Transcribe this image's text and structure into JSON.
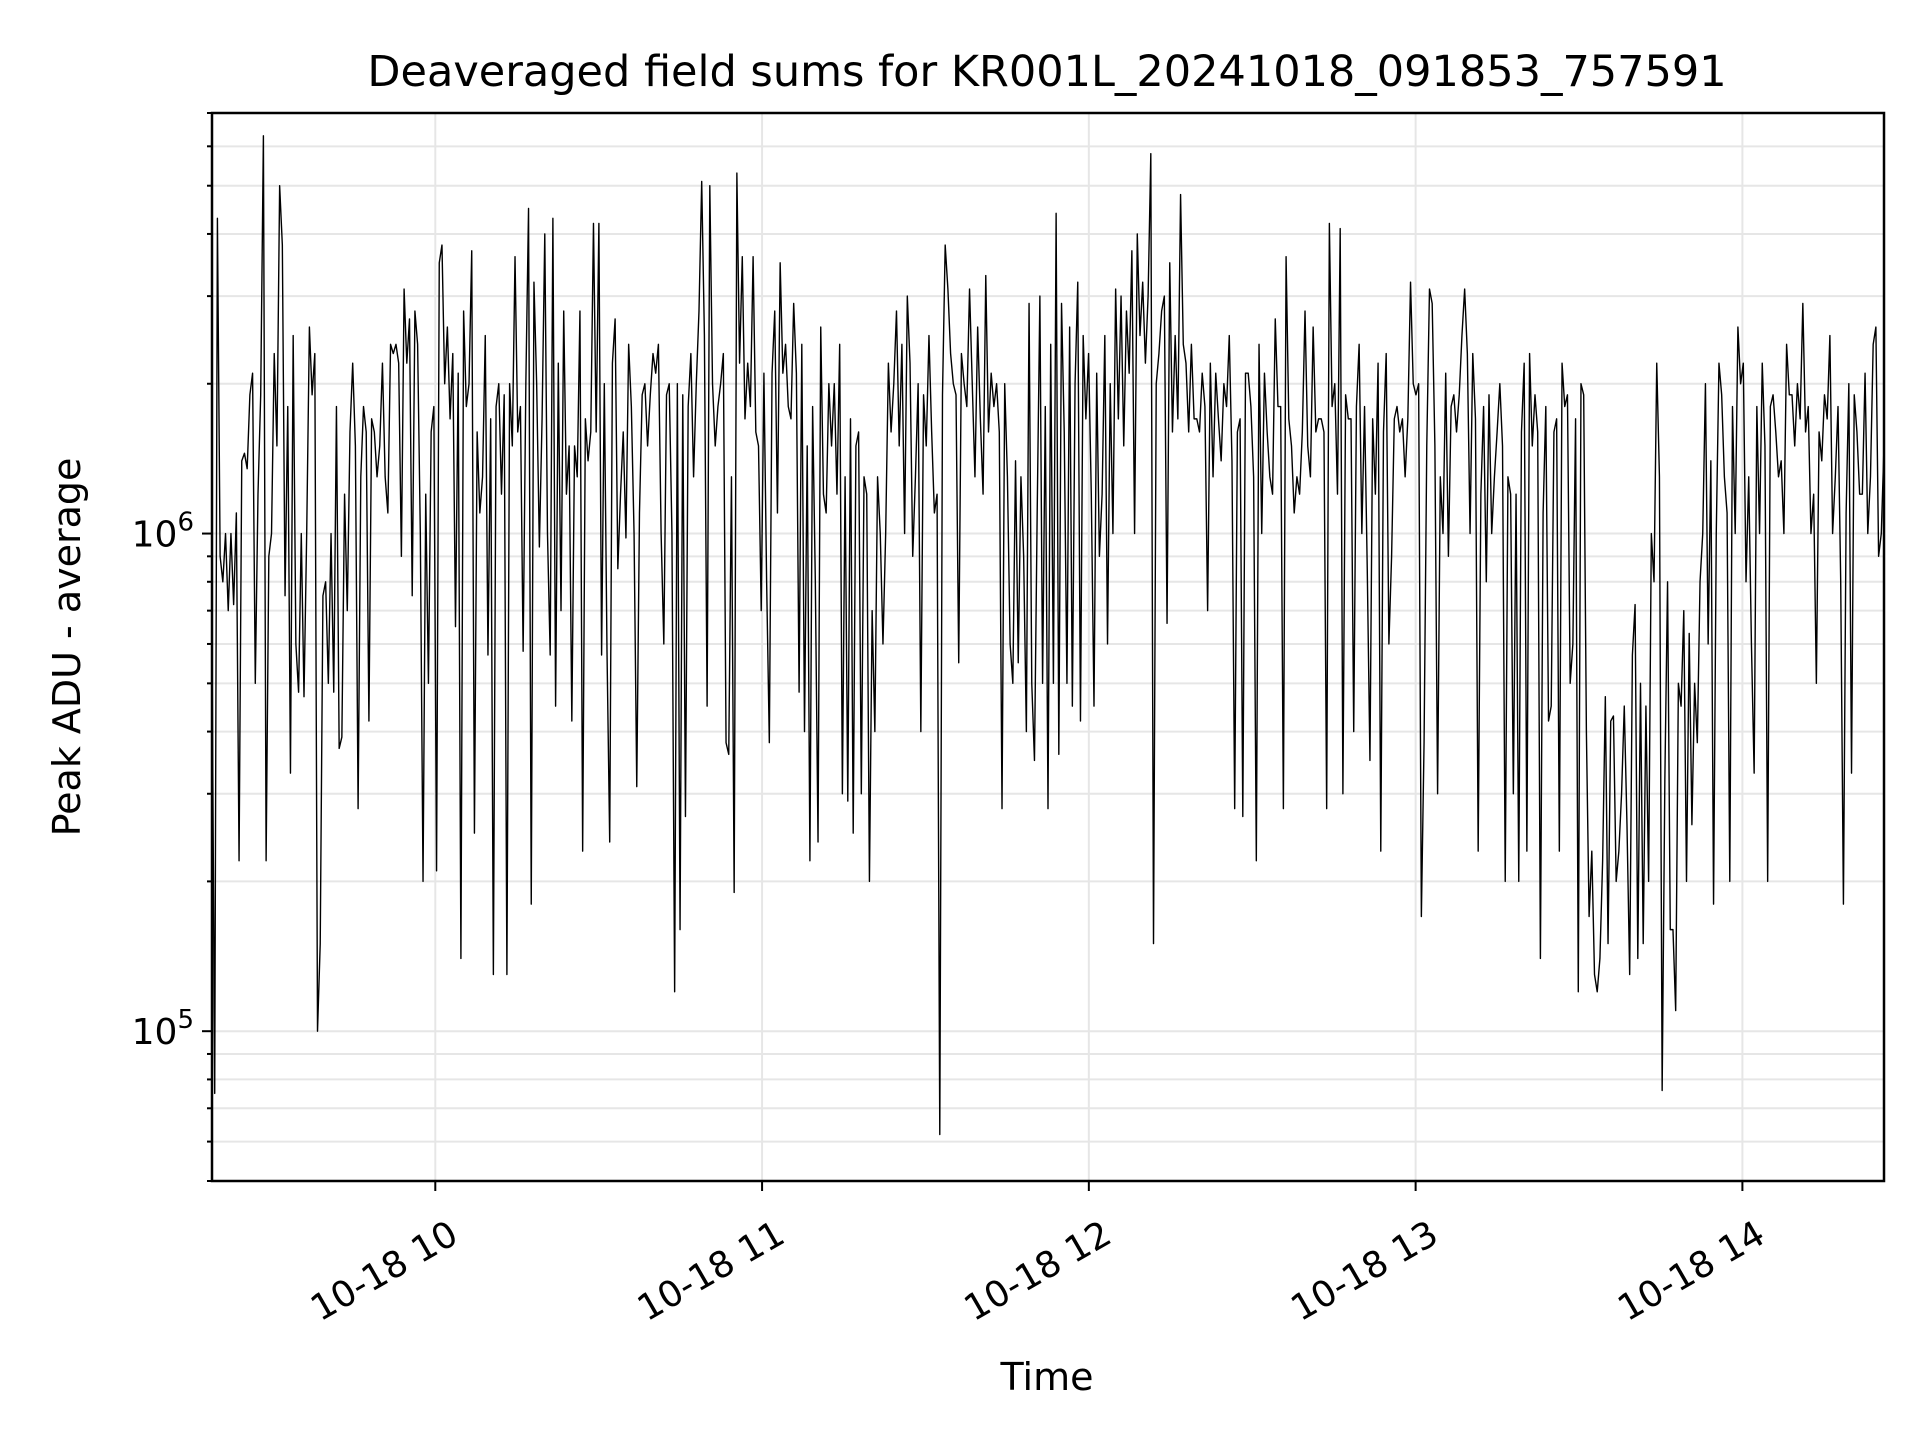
{
  "chart_data": {
    "type": "line",
    "title": "Deaveraged field sums for KR001L_20241018_091853_757591",
    "xlabel": "Time",
    "ylabel": "Peak ADU - average",
    "yscale": "log",
    "grid": true,
    "legend": "none",
    "xlim": [
      "2024-10-18 09:19",
      "2024-10-18 14:26"
    ],
    "ylim": [
      50000,
      7000000
    ],
    "x_ticks": [
      {
        "value": "2024-10-18 10:00",
        "label": "10-18 10"
      },
      {
        "value": "2024-10-18 11:00",
        "label": "10-18 11"
      },
      {
        "value": "2024-10-18 12:00",
        "label": "10-18 12"
      },
      {
        "value": "2024-10-18 13:00",
        "label": "10-18 13"
      },
      {
        "value": "2024-10-18 14:00",
        "label": "10-18 14"
      }
    ],
    "y_ticks": [
      {
        "value": 100000,
        "base": "10",
        "exp": "5"
      },
      {
        "value": 1000000,
        "base": "10",
        "exp": "6"
      }
    ],
    "series_color": "#000000",
    "series": [
      {
        "x_start": "2024-10-18 09:19",
        "x_end": "2024-10-18 14:26",
        "values": [
          620000,
          75000,
          4300000,
          900000,
          800000,
          1000000,
          700000,
          1000000,
          720000,
          1100000,
          220000,
          1400000,
          1450000,
          1350000,
          1900000,
          2100000,
          500000,
          1200000,
          1900000,
          6300000,
          220000,
          900000,
          1000000,
          2300000,
          1500000,
          5000000,
          3800000,
          750000,
          1800000,
          330000,
          2500000,
          600000,
          480000,
          1000000,
          470000,
          1000000,
          2600000,
          1900000,
          2300000,
          100000,
          150000,
          750000,
          800000,
          500000,
          1000000,
          480000,
          1800000,
          370000,
          390000,
          1200000,
          700000,
          1600000,
          2200000,
          1500000,
          280000,
          1300000,
          1800000,
          1600000,
          420000,
          1700000,
          1600000,
          1300000,
          1500000,
          2200000,
          1300000,
          1100000,
          2400000,
          2300000,
          2400000,
          2200000,
          900000,
          3100000,
          2200000,
          2700000,
          750000,
          2800000,
          2400000,
          1000000,
          200000,
          1200000,
          500000,
          1600000,
          1800000,
          210000,
          3500000,
          3800000,
          2000000,
          2600000,
          1700000,
          2300000,
          650000,
          2100000,
          140000,
          2800000,
          1800000,
          2000000,
          3700000,
          250000,
          1600000,
          1100000,
          1300000,
          2500000,
          570000,
          1700000,
          130000,
          1800000,
          2000000,
          1200000,
          1900000,
          130000,
          2000000,
          1500000,
          3600000,
          1600000,
          1800000,
          580000,
          2000000,
          4500000,
          180000,
          3200000,
          2000000,
          940000,
          1700000,
          4000000,
          1000000,
          570000,
          4300000,
          450000,
          2200000,
          700000,
          2800000,
          1200000,
          1500000,
          420000,
          1500000,
          1300000,
          2800000,
          230000,
          1700000,
          1400000,
          1600000,
          4200000,
          1600000,
          4200000,
          570000,
          2000000,
          580000,
          240000,
          2200000,
          2700000,
          850000,
          1200000,
          1600000,
          980000,
          2400000,
          1800000,
          1000000,
          310000,
          1100000,
          1900000,
          2000000,
          1500000,
          1900000,
          2300000,
          2100000,
          2400000,
          1000000,
          600000,
          1900000,
          2000000,
          1000000,
          120000,
          2000000,
          160000,
          1900000,
          270000,
          1800000,
          2300000,
          1300000,
          2000000,
          2800000,
          5100000,
          2500000,
          450000,
          5000000,
          2000000,
          1500000,
          1800000,
          2000000,
          2300000,
          380000,
          360000,
          1300000,
          190000,
          5300000,
          2200000,
          3600000,
          1700000,
          2200000,
          1800000,
          3600000,
          1600000,
          1500000,
          700000,
          2100000,
          800000,
          380000,
          2100000,
          2800000,
          1100000,
          3500000,
          2100000,
          2400000,
          1800000,
          1700000,
          2900000,
          2100000,
          480000,
          2400000,
          400000,
          1500000,
          220000,
          1800000,
          800000,
          240000,
          2600000,
          1200000,
          1100000,
          2000000,
          1500000,
          2000000,
          1200000,
          2400000,
          300000,
          1300000,
          290000,
          1700000,
          250000,
          1500000,
          1600000,
          300000,
          1300000,
          1200000,
          200000,
          700000,
          400000,
          1300000,
          1000000,
          600000,
          1000000,
          2200000,
          1600000,
          2000000,
          2800000,
          1500000,
          2400000,
          1000000,
          3000000,
          2200000,
          900000,
          1300000,
          2000000,
          400000,
          1900000,
          1500000,
          2500000,
          1600000,
          1100000,
          1200000,
          62000,
          1900000,
          3800000,
          3100000,
          2300000,
          2000000,
          1900000,
          550000,
          2300000,
          2000000,
          1800000,
          3100000,
          2000000,
          1300000,
          2600000,
          1700000,
          1200000,
          3300000,
          1600000,
          2100000,
          1800000,
          2000000,
          1600000,
          280000,
          2000000,
          1300000,
          600000,
          500000,
          1400000,
          550000,
          1300000,
          900000,
          400000,
          2900000,
          500000,
          350000,
          1100000,
          3000000,
          500000,
          1800000,
          280000,
          2400000,
          500000,
          4400000,
          360000,
          2900000,
          1600000,
          500000,
          2600000,
          450000,
          2000000,
          3200000,
          420000,
          2500000,
          1700000,
          2300000,
          1200000,
          450000,
          2100000,
          900000,
          1200000,
          2500000,
          600000,
          2000000,
          1000000,
          3100000,
          1700000,
          3000000,
          1500000,
          2800000,
          2100000,
          3700000,
          1000000,
          4000000,
          2500000,
          3200000,
          2200000,
          3000000,
          5800000,
          150000,
          2000000,
          2300000,
          2800000,
          3000000,
          660000,
          3500000,
          1600000,
          2500000,
          1700000,
          4800000,
          2400000,
          2200000,
          1600000,
          2400000,
          1700000,
          1700000,
          1600000,
          2100000,
          1800000,
          700000,
          2200000,
          1300000,
          2100000,
          1700000,
          1400000,
          2000000,
          1800000,
          2500000,
          1400000,
          280000,
          1600000,
          1700000,
          270000,
          2100000,
          2100000,
          1800000,
          1300000,
          220000,
          2400000,
          1000000,
          2100000,
          1600000,
          1300000,
          1200000,
          2700000,
          1800000,
          1800000,
          280000,
          3600000,
          1700000,
          1500000,
          1100000,
          1300000,
          1200000,
          1600000,
          2800000,
          1500000,
          1300000,
          2600000,
          1600000,
          1700000,
          1700000,
          1600000,
          280000,
          4200000,
          1800000,
          2000000,
          1200000,
          4100000,
          300000,
          1900000,
          1700000,
          1700000,
          400000,
          1800000,
          2400000,
          1000000,
          1800000,
          850000,
          350000,
          1700000,
          1200000,
          2200000,
          230000,
          1600000,
          2300000,
          600000,
          900000,
          1700000,
          1800000,
          1600000,
          1700000,
          1300000,
          1700000,
          3200000,
          2000000,
          1900000,
          2000000,
          170000,
          380000,
          1500000,
          3100000,
          2900000,
          1500000,
          300000,
          1300000,
          1000000,
          2100000,
          900000,
          1800000,
          1900000,
          1600000,
          1900000,
          2500000,
          3100000,
          2300000,
          1000000,
          2300000,
          1700000,
          230000,
          1200000,
          1800000,
          800000,
          1900000,
          1000000,
          1300000,
          1600000,
          2000000,
          1500000,
          200000,
          1300000,
          1200000,
          300000,
          1200000,
          200000,
          1600000,
          2200000,
          230000,
          2300000,
          1500000,
          1900000,
          1600000,
          140000,
          1100000,
          1800000,
          420000,
          450000,
          1600000,
          1700000,
          230000,
          2200000,
          1800000,
          1900000,
          500000,
          600000,
          1700000,
          120000,
          2000000,
          1900000,
          400000,
          170000,
          230000,
          130000,
          120000,
          140000,
          220000,
          470000,
          150000,
          420000,
          430000,
          200000,
          230000,
          300000,
          450000,
          260000,
          130000,
          570000,
          720000,
          140000,
          500000,
          150000,
          450000,
          200000,
          1000000,
          800000,
          2200000,
          1300000,
          76000,
          320000,
          800000,
          160000,
          160000,
          110000,
          500000,
          450000,
          700000,
          200000,
          630000,
          260000,
          500000,
          380000,
          800000,
          1000000,
          2000000,
          600000,
          1400000,
          180000,
          1000000,
          2200000,
          1900000,
          1300000,
          1100000,
          200000,
          1800000,
          1000000,
          2600000,
          2000000,
          2200000,
          800000,
          1300000,
          600000,
          330000,
          1800000,
          1000000,
          2200000,
          1500000,
          200000,
          1800000,
          1900000,
          1600000,
          1300000,
          1400000,
          1000000,
          2400000,
          1900000,
          1900000,
          1500000,
          2000000,
          1700000,
          2900000,
          1600000,
          1800000,
          1000000,
          1200000,
          500000,
          1600000,
          1400000,
          1900000,
          1700000,
          2500000,
          1000000,
          1300000,
          1800000,
          800000,
          180000,
          1100000,
          2000000,
          330000,
          1900000,
          1600000,
          1200000,
          1200000,
          2100000,
          1000000,
          1300000,
          2400000,
          2600000,
          900000,
          1000000,
          1500000
        ]
      }
    ]
  }
}
